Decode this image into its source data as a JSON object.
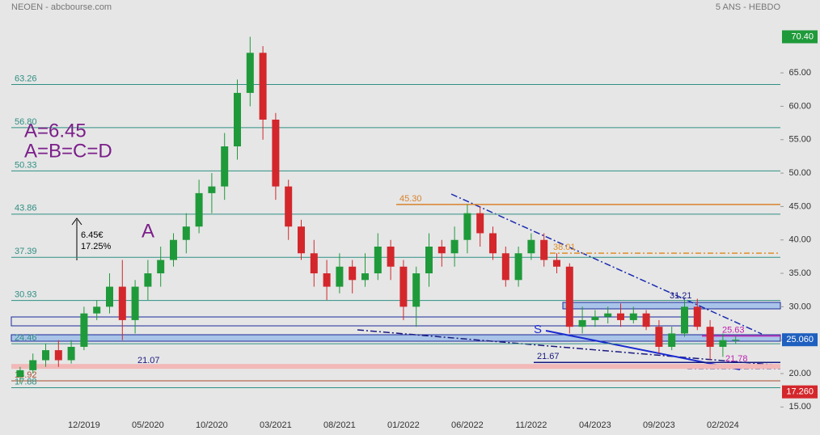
{
  "chart_data": {
    "type": "candlestick",
    "title": "NEOEN - abcbourse.com",
    "subtitle": "5 ANS - HEBDO",
    "categories": [
      null,
      null,
      null,
      null,
      null,
      "12/2019",
      null,
      null,
      null,
      null,
      "05/2020",
      null,
      null,
      null,
      null,
      "10/2020",
      null,
      null,
      null,
      null,
      "03/2021",
      null,
      null,
      null,
      null,
      "08/2021",
      null,
      null,
      null,
      null,
      "01/2022",
      null,
      null,
      null,
      null,
      "06/2022",
      null,
      null,
      null,
      null,
      "11/2022",
      null,
      null,
      null,
      null,
      "04/2023",
      null,
      null,
      null,
      null,
      "09/2023",
      null,
      null,
      null,
      null,
      "02/2024",
      null
    ],
    "series": {
      "open": [
        19.5,
        20.5,
        22,
        23.5,
        22,
        24,
        29,
        30,
        33,
        28,
        33,
        35,
        37,
        40,
        42,
        47,
        48,
        54,
        62,
        68,
        58,
        48,
        42,
        38,
        35,
        33,
        36,
        34,
        35,
        39,
        36,
        30,
        35,
        39,
        38,
        40,
        44,
        41,
        38,
        34,
        38,
        40,
        37,
        36,
        27,
        28,
        28.5,
        29,
        28,
        29,
        27,
        24,
        26,
        30,
        27,
        24,
        25
      ],
      "high": [
        21,
        23,
        24.5,
        25,
        25,
        30,
        31,
        35,
        37,
        34,
        37,
        39,
        41,
        44,
        49,
        50,
        56,
        64,
        70.4,
        69,
        59,
        49,
        43,
        40,
        37,
        38,
        37,
        38,
        41,
        40,
        37,
        36,
        41,
        40,
        42,
        45.3,
        45,
        42,
        39,
        39,
        41,
        41,
        38,
        36.5,
        30,
        29.5,
        30,
        30.5,
        30,
        29.5,
        28,
        27,
        31,
        31.2,
        28,
        26,
        25.6
      ],
      "low": [
        18.5,
        20,
        21,
        21,
        21.5,
        23.5,
        28,
        29,
        25,
        26,
        31,
        33,
        36,
        38,
        41,
        44,
        46,
        52,
        60,
        55,
        46,
        40,
        37,
        33,
        31,
        32,
        32,
        33,
        34,
        34,
        28,
        27,
        33,
        36,
        36,
        38,
        39,
        37,
        33,
        33,
        37,
        36,
        35,
        26,
        26,
        27,
        27.5,
        27,
        27.5,
        26.5,
        23,
        23.5,
        25.5,
        26.5,
        22,
        22.5,
        24.5
      ],
      "close": [
        20.5,
        22,
        23.5,
        22,
        24,
        29,
        30,
        33,
        28,
        33,
        35,
        37,
        40,
        42,
        47,
        48,
        54,
        62,
        68,
        58,
        48,
        42,
        38,
        35,
        33,
        36,
        34,
        35,
        39,
        36,
        30,
        35,
        39,
        38,
        40,
        44,
        41,
        38,
        34,
        38,
        40,
        37,
        36,
        27,
        28,
        28.5,
        29,
        28,
        29,
        27,
        24,
        26,
        30,
        27,
        24,
        25,
        25.06
      ],
      "up_color": "#1f9a3a",
      "down_color": "#d3272c"
    },
    "ylim": [
      12.5,
      73
    ],
    "yticks": [
      {
        "value": 15,
        "label": "15.00"
      },
      {
        "value": 20,
        "label": "20.00"
      },
      {
        "value": 25,
        "label": "25.00"
      },
      {
        "value": 30,
        "label": "30.00"
      },
      {
        "value": 35,
        "label": "35.00"
      },
      {
        "value": 40,
        "label": "40.00"
      },
      {
        "value": 45,
        "label": "45.00"
      },
      {
        "value": 50,
        "label": "50.00"
      },
      {
        "value": 55,
        "label": "55.00"
      },
      {
        "value": 60,
        "label": "60.00"
      },
      {
        "value": 65,
        "label": "65.00"
      }
    ],
    "price_tags": [
      {
        "value": 70.4,
        "label": "70.40",
        "color": "#1f9a3a"
      },
      {
        "value": 25.06,
        "label": "25.060",
        "color": "#1f5fbf"
      },
      {
        "value": 17.26,
        "label": "17.260",
        "color": "#d3272c"
      }
    ],
    "levels": [
      {
        "value": 63.26,
        "color": "#2f8f83"
      },
      {
        "value": 56.8,
        "label": "56.80",
        "color": "#2f8f83"
      },
      {
        "value": 50.33,
        "color": "#2f8f83"
      },
      {
        "value": 43.86,
        "color": "#2f8f83"
      },
      {
        "value": 37.39,
        "color": "#2f8f83"
      },
      {
        "value": 30.93,
        "color": "#2f8f83"
      },
      {
        "value": 24.46,
        "color": "#2f8f83"
      },
      {
        "value": 18.92,
        "color": "#a84e2e"
      },
      {
        "value": 17.88,
        "color": "#2f8f83"
      }
    ],
    "marked_levels": [
      {
        "value": 45.3,
        "label": "45.30",
        "color": "#d9822b"
      },
      {
        "value": 38.01,
        "color": "#e0902a"
      },
      {
        "value": 25.63,
        "color": "#c020b0"
      },
      {
        "value": 21.67,
        "color": "#1a1a80"
      },
      {
        "value": 21.07,
        "color": "#f2b8b8"
      }
    ],
    "annotations": [
      "A=6.45",
      "A=B=C=D",
      "A",
      "6.45€",
      "17.25%",
      "S",
      "31.21",
      "21.78"
    ]
  }
}
